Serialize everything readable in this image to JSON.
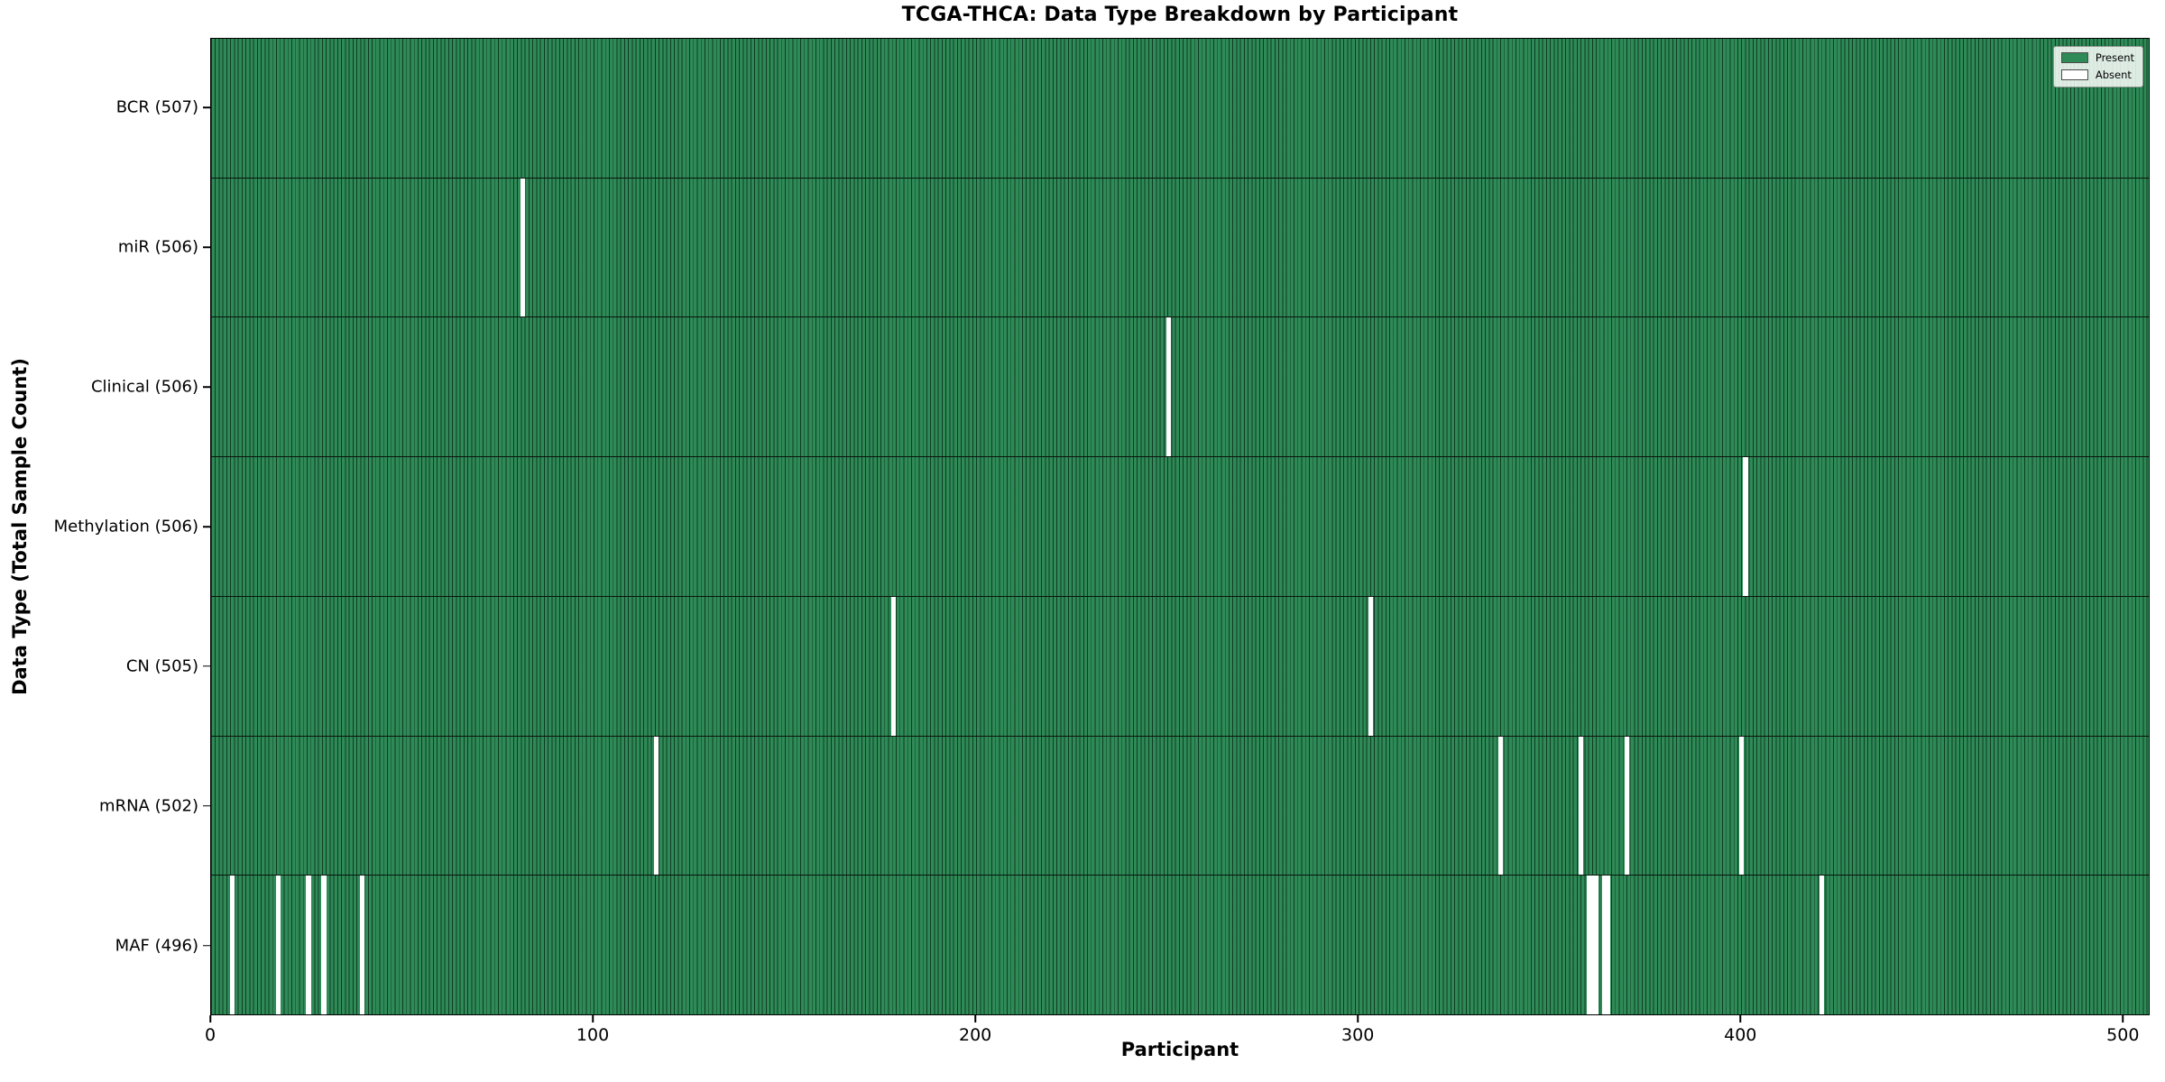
{
  "title": "TCGA-THCA: Data Type Breakdown by Participant",
  "colors": {
    "present": "#2e8b57",
    "absent": "#ffffff",
    "bar_edge": "#0a2616",
    "axis": "#000000"
  },
  "chart_data": {
    "type": "heatmap",
    "title": "TCGA-THCA: Data Type Breakdown by Participant",
    "xlabel": "Participant",
    "ylabel": "Data Type (Total Sample Count)",
    "x_ticks": [
      0,
      100,
      200,
      300,
      400,
      500
    ],
    "xlim": [
      0,
      507
    ],
    "n_participants": 507,
    "grid": false,
    "legend": [
      "Present",
      "Absent"
    ],
    "legend_position": "upper right",
    "rows": [
      {
        "label": "BCR (507)",
        "name": "BCR",
        "total": 507,
        "absent_participants": []
      },
      {
        "label": "miR (506)",
        "name": "miR",
        "total": 506,
        "absent_participants": [
          81
        ]
      },
      {
        "label": "Clinical (506)",
        "name": "Clinical",
        "total": 506,
        "absent_participants": [
          250
        ]
      },
      {
        "label": "Methylation (506)",
        "name": "Methylation",
        "total": 506,
        "absent_participants": [
          401
        ]
      },
      {
        "label": "CN (505)",
        "name": "CN",
        "total": 505,
        "absent_participants": [
          178,
          303
        ]
      },
      {
        "label": "mRNA (502)",
        "name": "mRNA",
        "total": 502,
        "absent_participants": [
          116,
          337,
          358,
          370,
          400
        ]
      },
      {
        "label": "MAF (496)",
        "name": "MAF",
        "total": 496,
        "absent_participants": [
          5,
          17,
          25,
          29,
          39,
          360,
          361,
          362,
          364,
          365,
          421
        ]
      }
    ]
  }
}
